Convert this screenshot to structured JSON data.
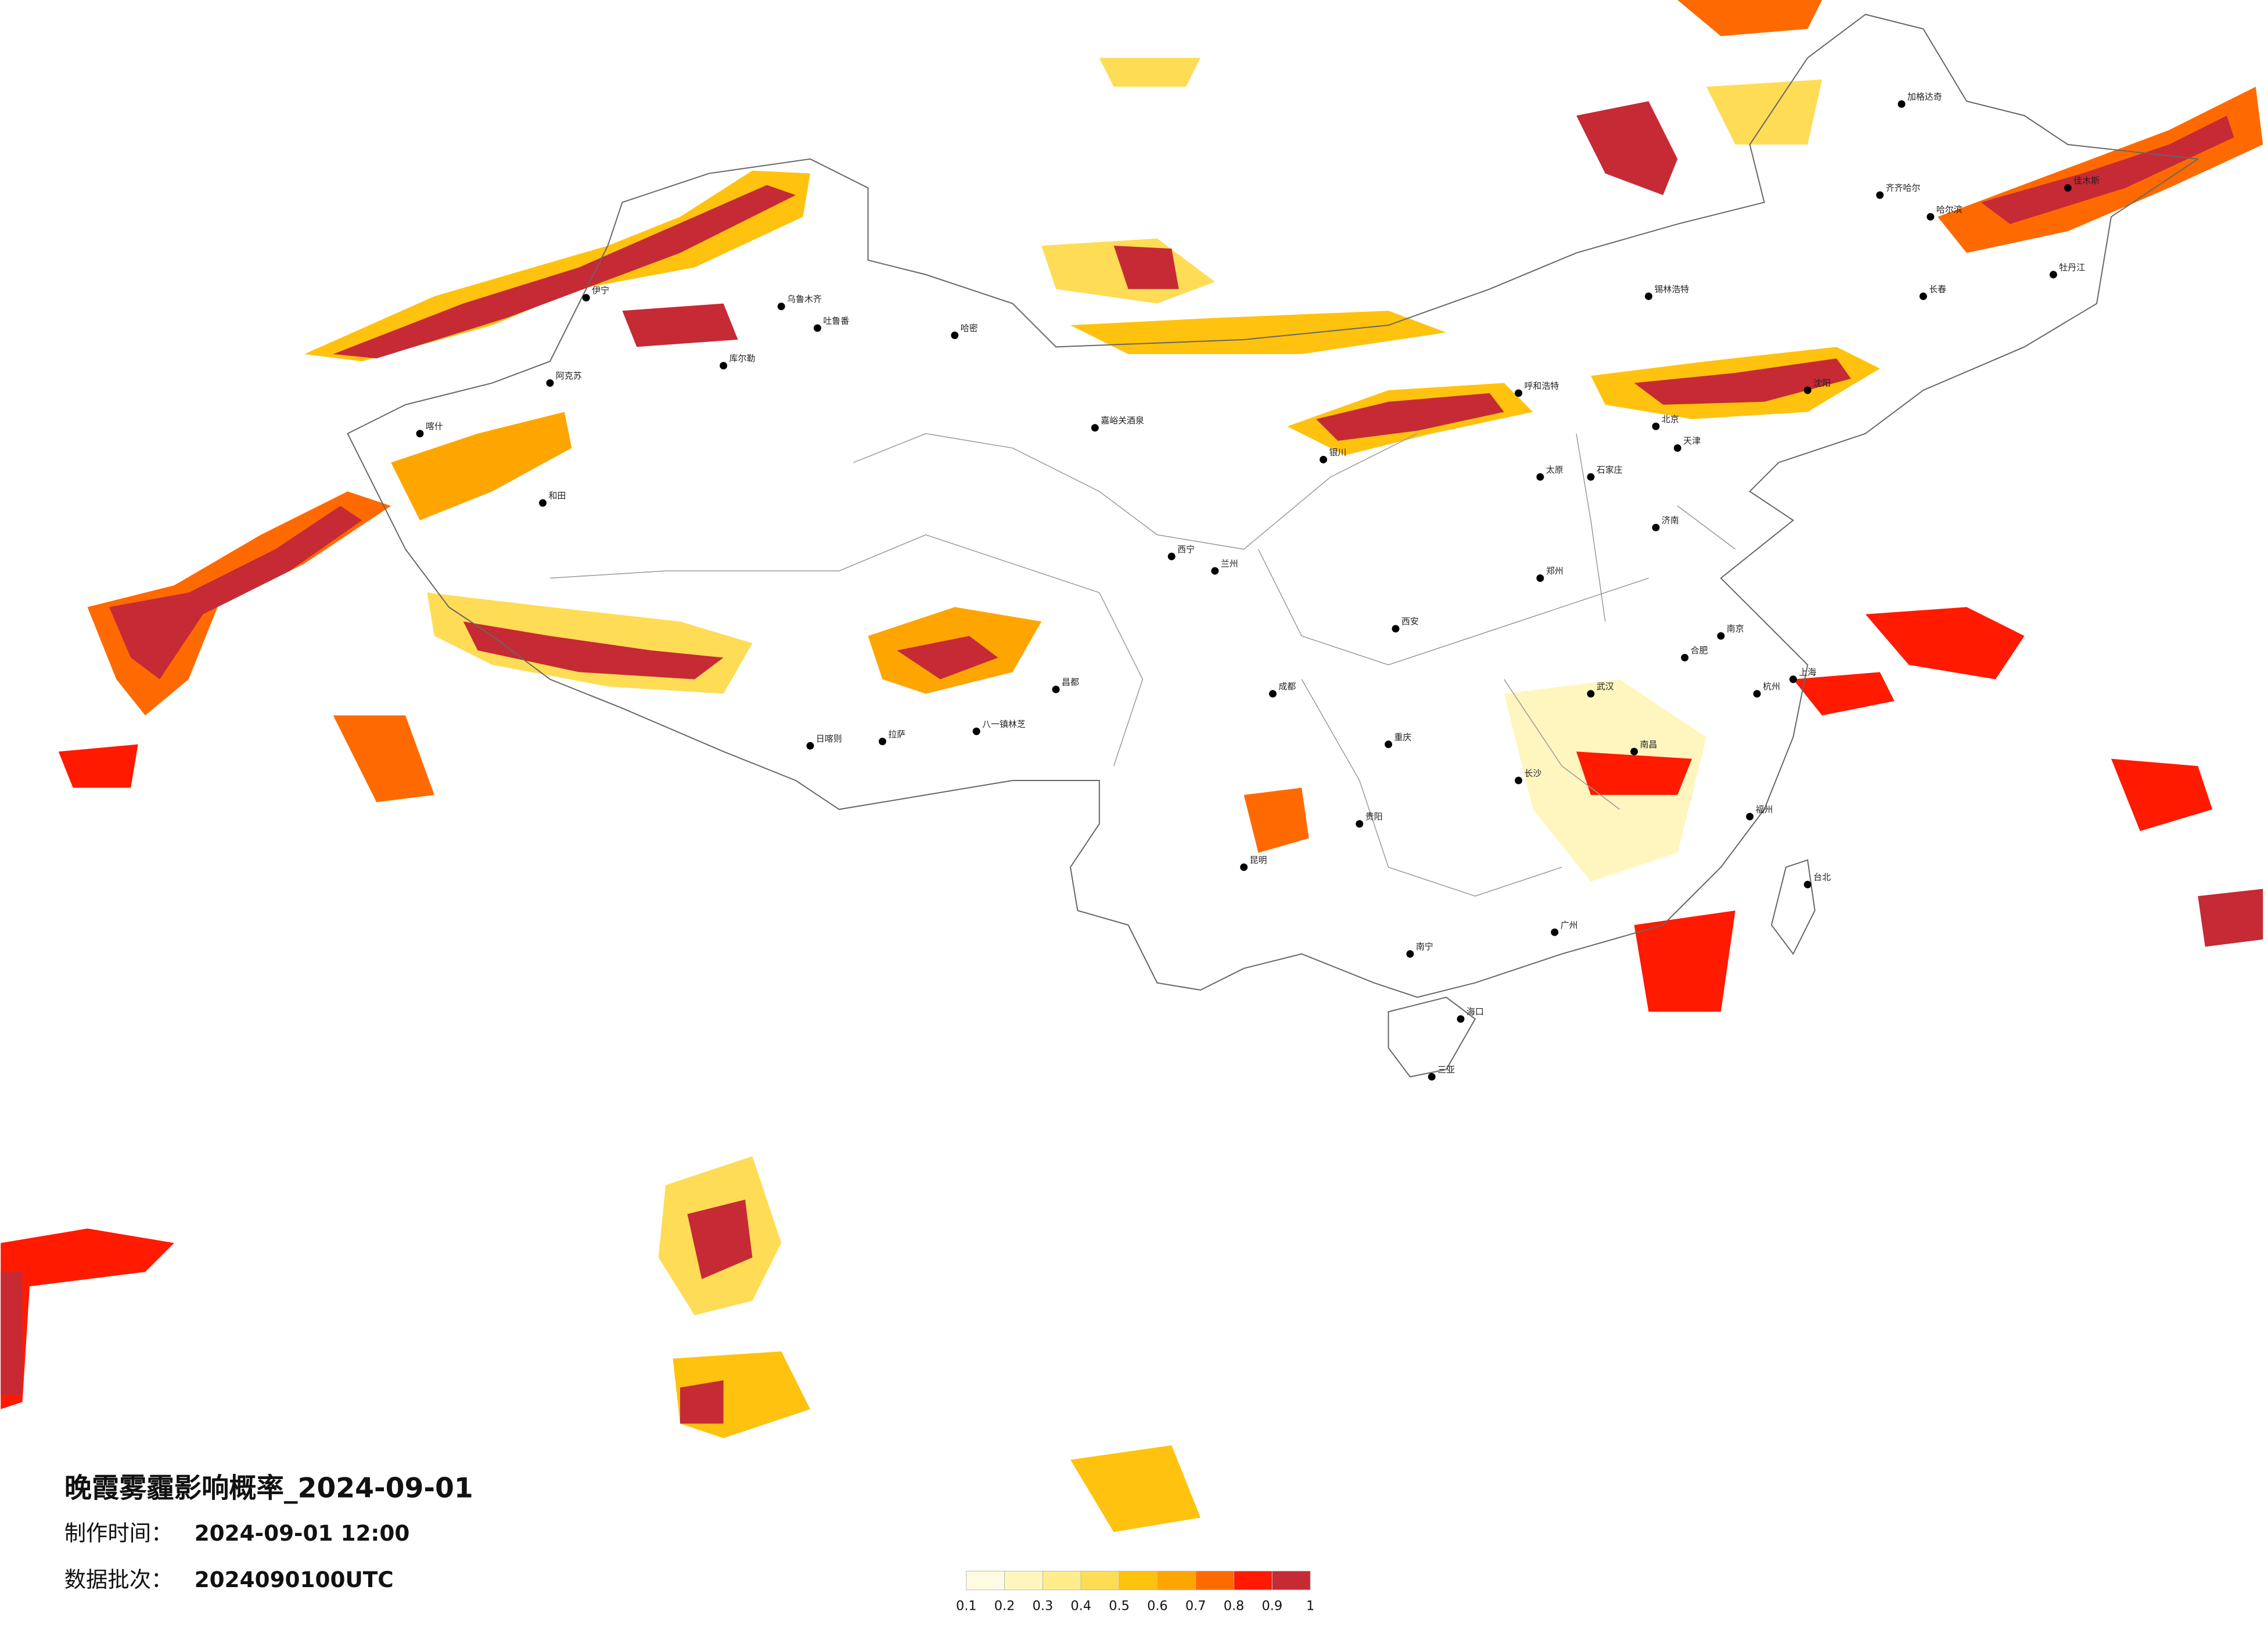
{
  "map": {
    "title": "晚霞雾霾影响概率_2024-09-01",
    "production_time_label": "制作时间：",
    "production_time": "2024-09-01 12:00",
    "batch_label": "数据批次：",
    "batch": "2024090100UTC",
    "colorbar": {
      "colors": [
        "#fffbe3",
        "#fff6bf",
        "#ffed8c",
        "#ffdc55",
        "#ffc20e",
        "#ffa500",
        "#ff6a00",
        "#ff1a00",
        "#c62a35"
      ],
      "ticks": [
        0.1,
        0.2,
        0.3,
        0.4,
        0.5,
        0.6,
        0.7,
        0.8,
        0.9,
        1
      ]
    },
    "cities": [
      "伊宁",
      "乌鲁木齐",
      "吐鲁番",
      "库尔勒",
      "哈密",
      "阿克苏",
      "喀什",
      "和田",
      "嘉峪关酒泉",
      "西宁",
      "兰州",
      "银川",
      "呼和浩特",
      "锡林浩特",
      "日喀则",
      "拉萨",
      "八一镇林芝",
      "昌都",
      "成都",
      "重庆",
      "贵阳",
      "昆明",
      "南宁",
      "海口",
      "三亚",
      "广州",
      "长沙",
      "武汉",
      "郑州",
      "西安",
      "太原",
      "石家庄",
      "北京",
      "天津",
      "济南",
      "合肥",
      "南京",
      "上海",
      "杭州",
      "南昌",
      "福州",
      "台北",
      "沈阳",
      "长春",
      "哈尔滨",
      "齐齐哈尔",
      "牡丹江",
      "佳木斯",
      "加格达奇"
    ]
  }
}
